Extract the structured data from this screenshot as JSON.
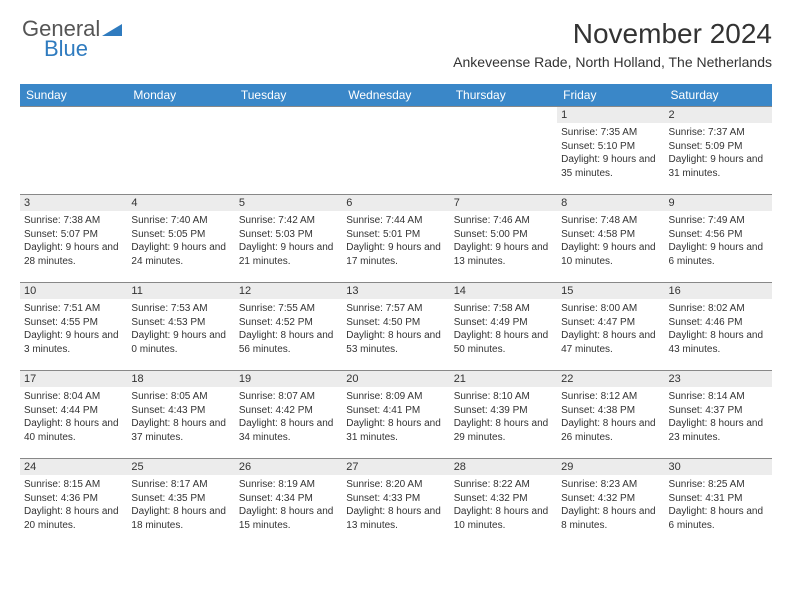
{
  "brand": {
    "part1": "General",
    "part2": "Blue"
  },
  "title": "November 2024",
  "subtitle": "Ankeveense Rade, North Holland, The Netherlands",
  "colors": {
    "header_bg": "#3a87c8",
    "header_fg": "#ffffff",
    "day_header_bg": "#ececec",
    "border": "#888888",
    "brand_blue": "#2f7bbf",
    "text": "#333333"
  },
  "weekdays": [
    "Sunday",
    "Monday",
    "Tuesday",
    "Wednesday",
    "Thursday",
    "Friday",
    "Saturday"
  ],
  "weeks": [
    [
      null,
      null,
      null,
      null,
      null,
      {
        "n": "1",
        "sr": "7:35 AM",
        "ss": "5:10 PM",
        "dl": "9 hours and 35 minutes."
      },
      {
        "n": "2",
        "sr": "7:37 AM",
        "ss": "5:09 PM",
        "dl": "9 hours and 31 minutes."
      }
    ],
    [
      {
        "n": "3",
        "sr": "7:38 AM",
        "ss": "5:07 PM",
        "dl": "9 hours and 28 minutes."
      },
      {
        "n": "4",
        "sr": "7:40 AM",
        "ss": "5:05 PM",
        "dl": "9 hours and 24 minutes."
      },
      {
        "n": "5",
        "sr": "7:42 AM",
        "ss": "5:03 PM",
        "dl": "9 hours and 21 minutes."
      },
      {
        "n": "6",
        "sr": "7:44 AM",
        "ss": "5:01 PM",
        "dl": "9 hours and 17 minutes."
      },
      {
        "n": "7",
        "sr": "7:46 AM",
        "ss": "5:00 PM",
        "dl": "9 hours and 13 minutes."
      },
      {
        "n": "8",
        "sr": "7:48 AM",
        "ss": "4:58 PM",
        "dl": "9 hours and 10 minutes."
      },
      {
        "n": "9",
        "sr": "7:49 AM",
        "ss": "4:56 PM",
        "dl": "9 hours and 6 minutes."
      }
    ],
    [
      {
        "n": "10",
        "sr": "7:51 AM",
        "ss": "4:55 PM",
        "dl": "9 hours and 3 minutes."
      },
      {
        "n": "11",
        "sr": "7:53 AM",
        "ss": "4:53 PM",
        "dl": "9 hours and 0 minutes."
      },
      {
        "n": "12",
        "sr": "7:55 AM",
        "ss": "4:52 PM",
        "dl": "8 hours and 56 minutes."
      },
      {
        "n": "13",
        "sr": "7:57 AM",
        "ss": "4:50 PM",
        "dl": "8 hours and 53 minutes."
      },
      {
        "n": "14",
        "sr": "7:58 AM",
        "ss": "4:49 PM",
        "dl": "8 hours and 50 minutes."
      },
      {
        "n": "15",
        "sr": "8:00 AM",
        "ss": "4:47 PM",
        "dl": "8 hours and 47 minutes."
      },
      {
        "n": "16",
        "sr": "8:02 AM",
        "ss": "4:46 PM",
        "dl": "8 hours and 43 minutes."
      }
    ],
    [
      {
        "n": "17",
        "sr": "8:04 AM",
        "ss": "4:44 PM",
        "dl": "8 hours and 40 minutes."
      },
      {
        "n": "18",
        "sr": "8:05 AM",
        "ss": "4:43 PM",
        "dl": "8 hours and 37 minutes."
      },
      {
        "n": "19",
        "sr": "8:07 AM",
        "ss": "4:42 PM",
        "dl": "8 hours and 34 minutes."
      },
      {
        "n": "20",
        "sr": "8:09 AM",
        "ss": "4:41 PM",
        "dl": "8 hours and 31 minutes."
      },
      {
        "n": "21",
        "sr": "8:10 AM",
        "ss": "4:39 PM",
        "dl": "8 hours and 29 minutes."
      },
      {
        "n": "22",
        "sr": "8:12 AM",
        "ss": "4:38 PM",
        "dl": "8 hours and 26 minutes."
      },
      {
        "n": "23",
        "sr": "8:14 AM",
        "ss": "4:37 PM",
        "dl": "8 hours and 23 minutes."
      }
    ],
    [
      {
        "n": "24",
        "sr": "8:15 AM",
        "ss": "4:36 PM",
        "dl": "8 hours and 20 minutes."
      },
      {
        "n": "25",
        "sr": "8:17 AM",
        "ss": "4:35 PM",
        "dl": "8 hours and 18 minutes."
      },
      {
        "n": "26",
        "sr": "8:19 AM",
        "ss": "4:34 PM",
        "dl": "8 hours and 15 minutes."
      },
      {
        "n": "27",
        "sr": "8:20 AM",
        "ss": "4:33 PM",
        "dl": "8 hours and 13 minutes."
      },
      {
        "n": "28",
        "sr": "8:22 AM",
        "ss": "4:32 PM",
        "dl": "8 hours and 10 minutes."
      },
      {
        "n": "29",
        "sr": "8:23 AM",
        "ss": "4:32 PM",
        "dl": "8 hours and 8 minutes."
      },
      {
        "n": "30",
        "sr": "8:25 AM",
        "ss": "4:31 PM",
        "dl": "8 hours and 6 minutes."
      }
    ]
  ],
  "labels": {
    "sunrise": "Sunrise:",
    "sunset": "Sunset:",
    "daylight": "Daylight:"
  }
}
